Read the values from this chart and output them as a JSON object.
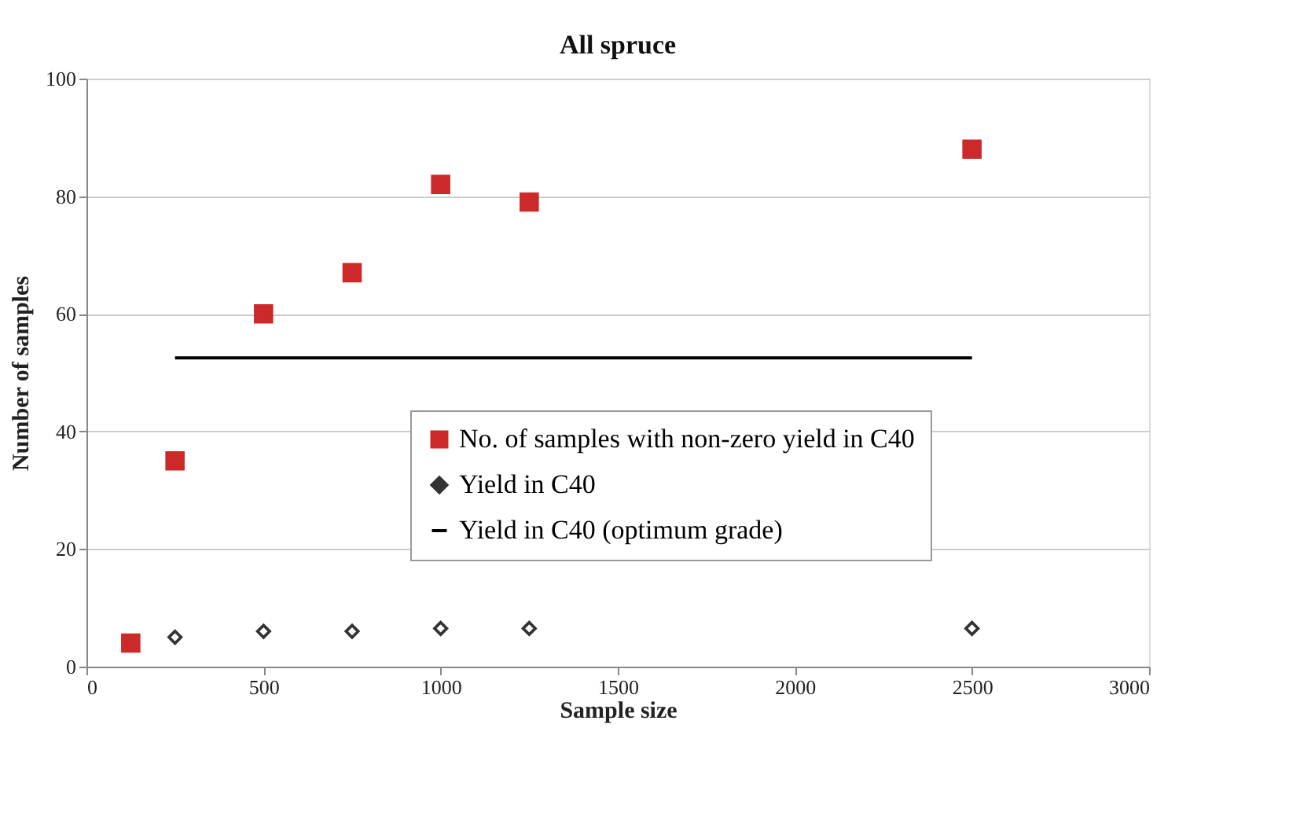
{
  "chart_data": {
    "type": "scatter",
    "title": "All spruce",
    "xlabel": "Sample size",
    "ylabel": "Number of samples",
    "xlim": [
      0,
      3000
    ],
    "xticks": [
      0,
      500,
      1000,
      1500,
      2000,
      2500,
      3000
    ],
    "ylim": [
      0,
      100
    ],
    "yticks": [
      0,
      20,
      40,
      60,
      80,
      100
    ],
    "grid": "y",
    "legend": "bottom right",
    "series": [
      {
        "name": "No. of samples with non-zero yield in C40",
        "marker": "square",
        "color": "#cc2a2a",
        "x": [
          125,
          250,
          500,
          750,
          1000,
          1250,
          2500
        ],
        "values": [
          4,
          35,
          60,
          67,
          82,
          79,
          88
        ]
      },
      {
        "name": "Yield in C40",
        "marker": "diamond",
        "color": "#333333",
        "x": [
          250,
          500,
          750,
          1000,
          1250,
          2500
        ],
        "values": [
          5,
          6,
          6,
          6.5,
          6.5,
          6.5
        ]
      },
      {
        "name": "Yield in C40 (optimum grade)",
        "type": "line",
        "marker": "none",
        "line_style": "solid",
        "color": "#000000",
        "x": [
          250,
          2500
        ],
        "values": [
          52.5,
          52.5
        ]
      }
    ]
  }
}
